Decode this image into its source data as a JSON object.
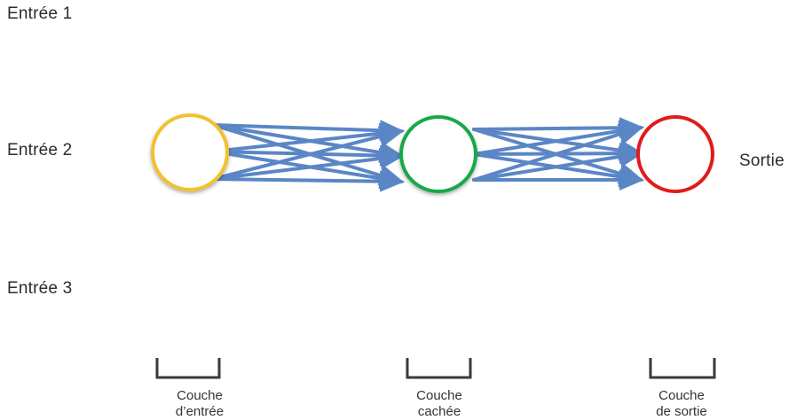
{
  "inputs": [
    {
      "label": "Entrée 1"
    },
    {
      "label": "Entrée 2"
    },
    {
      "label": "Entrée 3"
    }
  ],
  "output": {
    "label": "Sortie"
  },
  "layers": [
    {
      "line1": "Couche",
      "line2": "d’entrée",
      "color": "#f2c12e"
    },
    {
      "line1": "Couche",
      "line2": "cachée",
      "color": "#19a84a"
    },
    {
      "line1": "Couche",
      "line2": "de sortie",
      "color": "#e01b1b"
    }
  ],
  "colors": {
    "arrow": "#5b86c5",
    "bracket": "#3a3a3a"
  }
}
